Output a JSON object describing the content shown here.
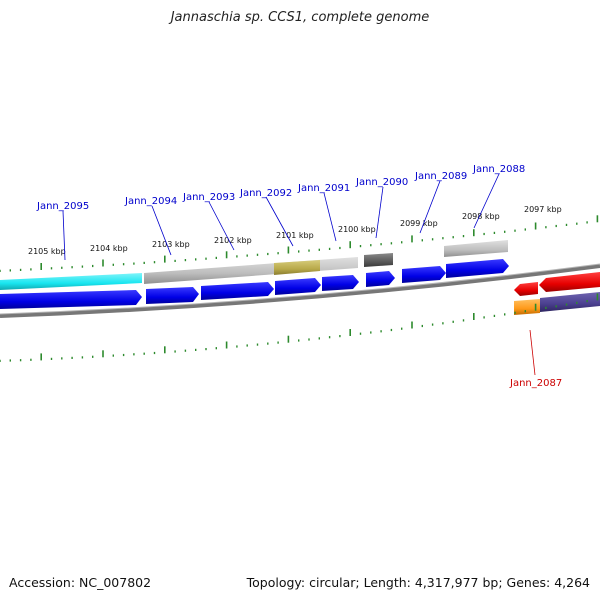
{
  "title": "Jannaschia sp. CCS1, complete genome",
  "footer": {
    "accession": "Accession: NC_007802",
    "summary": "Topology: circular; Length: 4,317,977 bp; Genes: 4,264"
  },
  "colors": {
    "forward_gene": "#0000ee",
    "reverse_gene": "#ee0000",
    "label_blue": "#0000cc",
    "label_red": "#cc0000",
    "cyan": "#19e6f0",
    "grey": "#bdbdbd",
    "dark_grey": "#5a5a5a",
    "olive": "#b8a94a",
    "orange": "#ff9a1a",
    "purple": "#4a3f8f",
    "tick": "#2d8a2d",
    "backbone": "#808080"
  },
  "ruler": {
    "ticks": [
      "2105 kbp",
      "2104 kbp",
      "2103 kbp",
      "2102 kbp",
      "2101 kbp",
      "2100 kbp",
      "2099 kbp",
      "2098 kbp",
      "2097 kbp"
    ]
  },
  "genes": [
    {
      "id": "Jann_2095",
      "strand": "+"
    },
    {
      "id": "Jann_2094",
      "strand": "+"
    },
    {
      "id": "Jann_2093",
      "strand": "+"
    },
    {
      "id": "Jann_2092",
      "strand": "+"
    },
    {
      "id": "Jann_2091",
      "strand": "+"
    },
    {
      "id": "Jann_2090",
      "strand": "+"
    },
    {
      "id": "Jann_2089",
      "strand": "+"
    },
    {
      "id": "Jann_2088",
      "strand": "+"
    },
    {
      "id": "Jann_2087",
      "strand": "-"
    }
  ]
}
